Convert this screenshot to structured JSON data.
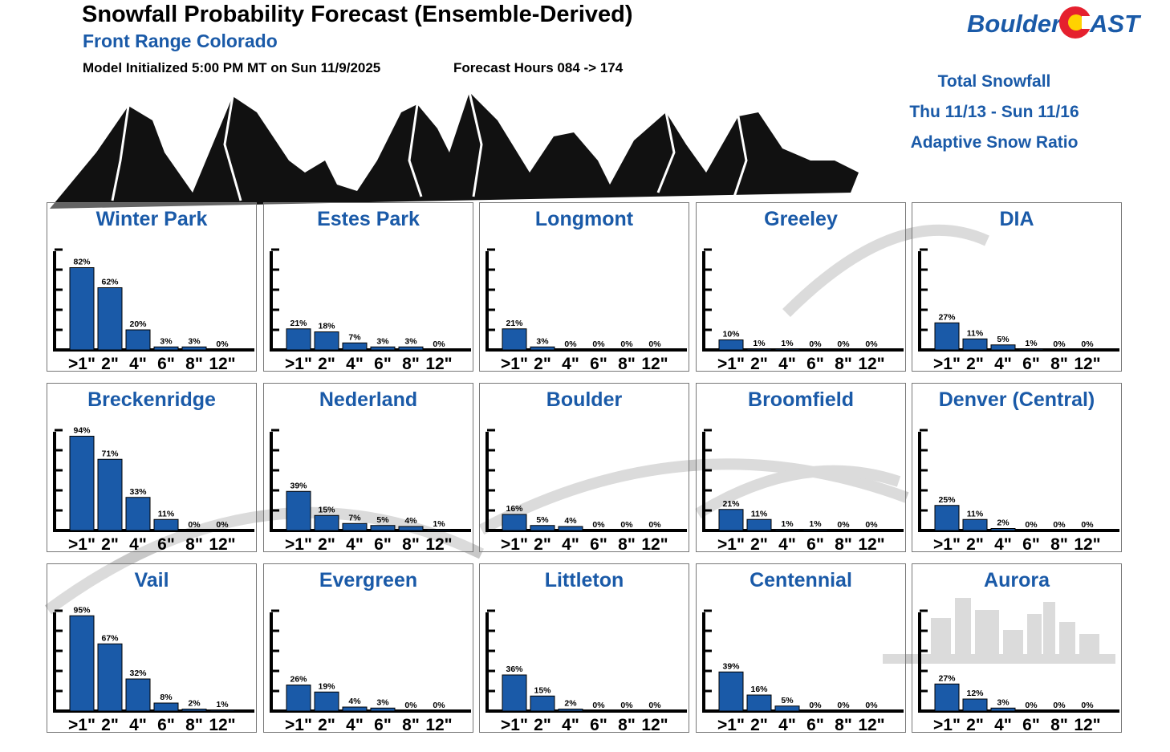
{
  "header": {
    "title": "Snowfall Probability Forecast (Ensemble-Derived)",
    "subtitle": "Front Range Colorado",
    "model_initialized": "Model Initialized 5:00 PM MT on Sun 11/9/2025",
    "forecast_hours": "Forecast Hours 084 -> 174"
  },
  "logo": {
    "text_left": "Boulder",
    "text_right": "AST"
  },
  "info": {
    "line1": "Total Snowfall",
    "line2": "Thu 11/13 - Sun 11/16",
    "line3": "Adaptive Snow Ratio"
  },
  "colors": {
    "bar": "#1a5aa8",
    "title": "#1a5aa8"
  },
  "chart_data": {
    "type": "bar",
    "categories": [
      ">1\"",
      "2\"",
      "4\"",
      "6\"",
      "8\"",
      "12\""
    ],
    "ylim": [
      0,
      100
    ],
    "unit": "%",
    "panels": [
      {
        "name": "Winter Park",
        "values": [
          82,
          62,
          20,
          3,
          3,
          0
        ]
      },
      {
        "name": "Estes Park",
        "values": [
          21,
          18,
          7,
          3,
          3,
          0
        ]
      },
      {
        "name": "Longmont",
        "values": [
          21,
          3,
          0,
          0,
          0,
          0
        ]
      },
      {
        "name": "Greeley",
        "values": [
          10,
          1,
          1,
          0,
          0,
          0
        ]
      },
      {
        "name": "DIA",
        "values": [
          27,
          11,
          5,
          1,
          0,
          0
        ]
      },
      {
        "name": "Breckenridge",
        "values": [
          94,
          71,
          33,
          11,
          0,
          0
        ]
      },
      {
        "name": "Nederland",
        "values": [
          39,
          15,
          7,
          5,
          4,
          1
        ]
      },
      {
        "name": "Boulder",
        "values": [
          16,
          5,
          4,
          0,
          0,
          0
        ]
      },
      {
        "name": "Broomfield",
        "values": [
          21,
          11,
          1,
          1,
          0,
          0
        ]
      },
      {
        "name": "Denver (Central)",
        "values": [
          25,
          11,
          2,
          0,
          0,
          0
        ]
      },
      {
        "name": "Vail",
        "values": [
          95,
          67,
          32,
          8,
          2,
          1
        ]
      },
      {
        "name": "Evergreen",
        "values": [
          26,
          19,
          4,
          3,
          0,
          0
        ]
      },
      {
        "name": "Littleton",
        "values": [
          36,
          15,
          2,
          0,
          0,
          0
        ]
      },
      {
        "name": "Centennial",
        "values": [
          39,
          16,
          5,
          0,
          0,
          0
        ]
      },
      {
        "name": "Aurora",
        "values": [
          27,
          12,
          3,
          0,
          0,
          0
        ]
      }
    ]
  }
}
